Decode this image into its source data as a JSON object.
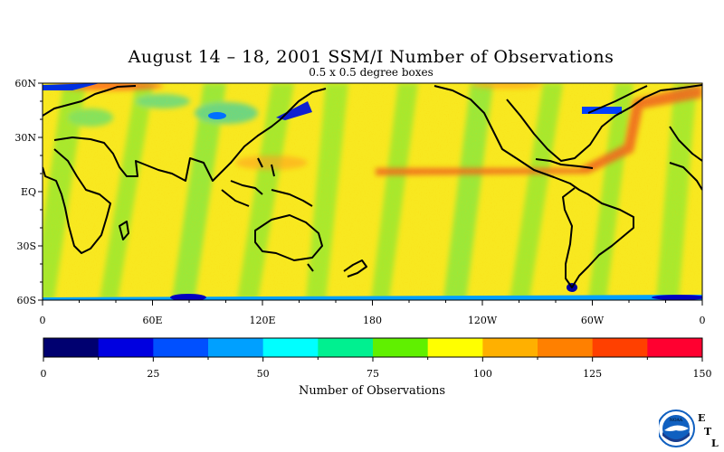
{
  "title": "August 14 – 18, 2001 SSM/I Number of Observations",
  "subtitle": "0.5 x 0.5 degree boxes",
  "map": {
    "lat_labels": [
      "60N",
      "30N",
      "EQ",
      "30S",
      "60S"
    ],
    "lat_values": [
      60,
      30,
      0,
      -30,
      -60
    ],
    "lon_labels": [
      "0",
      "60E",
      "120E",
      "180",
      "120W",
      "60W",
      "0"
    ],
    "lon_values": [
      0,
      60,
      120,
      180,
      240,
      300,
      360
    ],
    "lat_range": [
      -60,
      60
    ],
    "lon_range": [
      0,
      360
    ],
    "land_color": "#000000"
  },
  "colorbar": {
    "title": "Number of Observations",
    "tick_labels": [
      "0",
      "25",
      "50",
      "75",
      "100",
      "125",
      "150"
    ],
    "tick_values": [
      0,
      25,
      50,
      75,
      100,
      125,
      150
    ],
    "range": [
      0,
      150
    ],
    "colors": [
      "#000070",
      "#0000e0",
      "#0050ff",
      "#00a0ff",
      "#00ffff",
      "#00f090",
      "#60f000",
      "#ffff00",
      "#ffb000",
      "#ff8000",
      "#ff4000",
      "#ff0030"
    ]
  },
  "logo": {
    "agency": "NOAA",
    "letters": [
      "E",
      "T",
      "L"
    ],
    "colors": {
      "globe": "#1060c0",
      "ring": "#ffffff",
      "bird": "#ffffff",
      "letters": "#cc0000"
    }
  }
}
